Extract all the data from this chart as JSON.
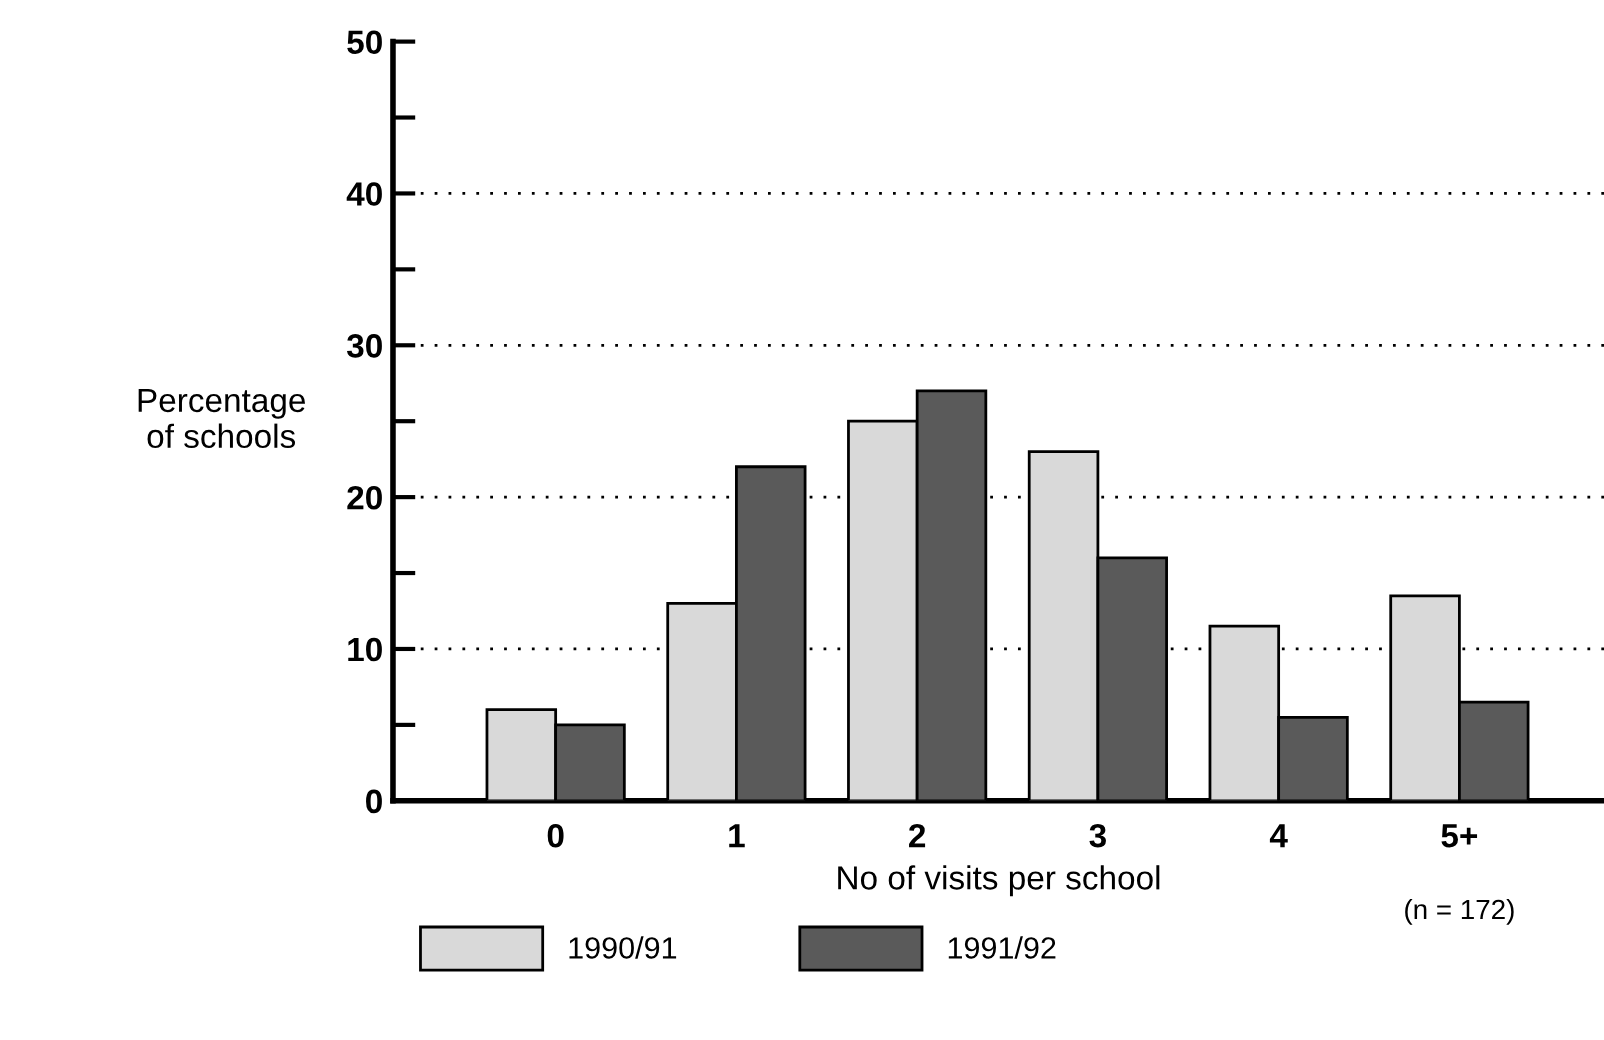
{
  "chart_data": {
    "type": "bar",
    "categories": [
      "0",
      "1",
      "2",
      "3",
      "4",
      "5+"
    ],
    "series": [
      {
        "name": "1990/91",
        "color": "#d9d9d9",
        "values": [
          6,
          13,
          25,
          23,
          11.5,
          13.5
        ]
      },
      {
        "name": "1991/92",
        "color": "#5a5a5a",
        "values": [
          5,
          22,
          27,
          16,
          5.5,
          6.5
        ]
      }
    ],
    "xlabel": "No of visits per school",
    "ylabel": "Percentage\nof schools",
    "annotations": [
      "(n = 172)"
    ],
    "ylim": [
      0,
      50
    ],
    "yticks": [
      0,
      {
        "value": 5,
        "label": null
      },
      10,
      {
        "value": 15,
        "label": null
      },
      20,
      {
        "value": 25,
        "label": null
      },
      30,
      {
        "value": 35,
        "label": null
      },
      40,
      {
        "value": 45,
        "label": null
      },
      50
    ],
    "grid": "y",
    "legend": "bottom left"
  }
}
